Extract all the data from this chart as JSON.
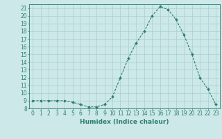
{
  "x": [
    0,
    1,
    2,
    3,
    4,
    5,
    6,
    7,
    8,
    9,
    10,
    11,
    12,
    13,
    14,
    15,
    16,
    17,
    18,
    19,
    20,
    21,
    22,
    23
  ],
  "y": [
    9,
    9,
    9,
    9,
    9,
    8.8,
    8.5,
    8.2,
    8.2,
    8.5,
    9.5,
    12,
    14.5,
    16.5,
    18,
    20,
    21.2,
    20.8,
    19.5,
    17.5,
    15,
    12,
    10.5,
    8.5
  ],
  "line_color": "#2e7d72",
  "marker": "D",
  "marker_size": 2.0,
  "bg_color": "#cce8e8",
  "grid_color": "#aacfcf",
  "xlabel": "Humidex (Indice chaleur)",
  "ylim": [
    8,
    21.5
  ],
  "xlim": [
    -0.5,
    23.5
  ],
  "yticks": [
    8,
    9,
    10,
    11,
    12,
    13,
    14,
    15,
    16,
    17,
    18,
    19,
    20,
    21
  ],
  "xticks": [
    0,
    1,
    2,
    3,
    4,
    5,
    6,
    7,
    8,
    9,
    10,
    11,
    12,
    13,
    14,
    15,
    16,
    17,
    18,
    19,
    20,
    21,
    22,
    23
  ],
  "label_fontsize": 6.5,
  "tick_fontsize": 5.5
}
